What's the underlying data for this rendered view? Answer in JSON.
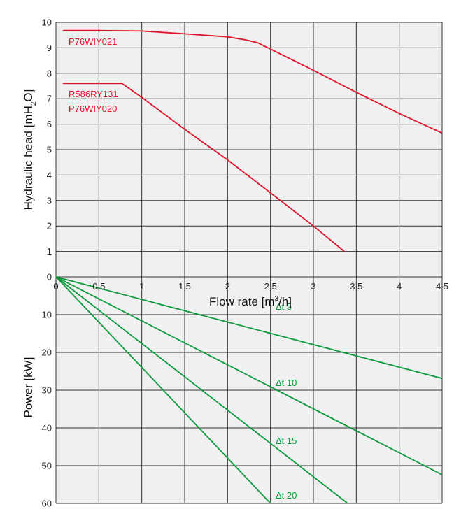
{
  "chart_data": [
    {
      "type": "line",
      "xlabel_main": "Flow rate [m",
      "xlabel_sup": "3",
      "xlabel_end": "/h]",
      "ylabel_main": "Hydraulic head [mH",
      "ylabel_sub": "2",
      "ylabel_end": "O]",
      "xlim": [
        0,
        4.5
      ],
      "ylim": [
        0,
        10
      ],
      "x_ticks": [
        "0",
        "0,5",
        "1",
        "1,5",
        "2",
        "2,5",
        "3",
        "3,5",
        "4",
        "4,5"
      ],
      "y_ticks": [
        "0",
        "1",
        "2",
        "3",
        "4",
        "5",
        "6",
        "7",
        "8",
        "9",
        "10"
      ],
      "grid": true,
      "series": [
        {
          "name": "P76WIY021",
          "color": "#e1142a",
          "points": [
            [
              0.08,
              9.68
            ],
            [
              0.5,
              9.68
            ],
            [
              1.0,
              9.66
            ],
            [
              1.5,
              9.55
            ],
            [
              2.0,
              9.43
            ],
            [
              2.2,
              9.32
            ],
            [
              2.35,
              9.2
            ],
            [
              2.5,
              8.95
            ],
            [
              3.0,
              8.12
            ],
            [
              3.5,
              7.25
            ],
            [
              4.0,
              6.42
            ],
            [
              4.5,
              5.65
            ]
          ]
        },
        {
          "name": "R586RY131",
          "name2": "P76WIY020",
          "color": "#e1142a",
          "points": [
            [
              0.08,
              7.6
            ],
            [
              0.77,
              7.6
            ],
            [
              1.0,
              7.05
            ],
            [
              1.5,
              5.8
            ],
            [
              2.0,
              4.6
            ],
            [
              2.5,
              3.3
            ],
            [
              3.0,
              2.0
            ],
            [
              3.36,
              1.0
            ]
          ]
        }
      ]
    },
    {
      "type": "line",
      "ylabel": "Power [kW]",
      "xlim": [
        0,
        4.5
      ],
      "ylim": [
        0,
        60
      ],
      "y_ticks": [
        "10",
        "20",
        "30",
        "40",
        "50",
        "60"
      ],
      "grid": true,
      "series": [
        {
          "name": "Δt 5",
          "color": "#0c9a3c",
          "points": [
            [
              0,
              0
            ],
            [
              4.5,
              26.9
            ]
          ]
        },
        {
          "name": "Δt 10",
          "color": "#0c9a3c",
          "points": [
            [
              0,
              0
            ],
            [
              4.5,
              52.4
            ]
          ]
        },
        {
          "name": "Δt 15",
          "color": "#0c9a3c",
          "points": [
            [
              0,
              0
            ],
            [
              3.4,
              60
            ]
          ]
        },
        {
          "name": "Δt 20",
          "color": "#0c9a3c",
          "points": [
            [
              0,
              0
            ],
            [
              2.5,
              60
            ]
          ]
        }
      ]
    }
  ]
}
